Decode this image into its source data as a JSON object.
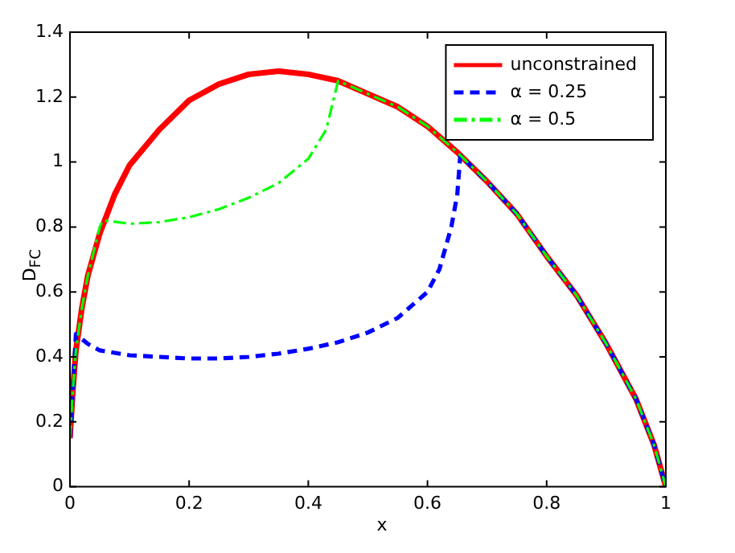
{
  "chart_data": {
    "type": "line",
    "xlabel": "x",
    "ylabel": "D$_{FC}$",
    "xlim": [
      0,
      1
    ],
    "ylim": [
      0,
      1.4
    ],
    "xticks": [
      0,
      0.2,
      0.4,
      0.6,
      0.8,
      1
    ],
    "yticks": [
      0,
      0.2,
      0.4,
      0.6,
      0.8,
      1,
      1.2,
      1.4
    ],
    "grid": false,
    "legend": "top right",
    "marker": "none",
    "series": [
      {
        "name": "unconstrained",
        "color": "#ff0000",
        "line_style": "solid",
        "x": [
          0,
          0.005,
          0.01,
          0.02,
          0.03,
          0.05,
          0.075,
          0.1,
          0.15,
          0.2,
          0.25,
          0.3,
          0.35,
          0.4,
          0.45,
          0.5,
          0.55,
          0.6,
          0.65,
          0.7,
          0.75,
          0.8,
          0.85,
          0.9,
          0.95,
          0.98,
          1
        ],
        "values": [
          0.15,
          0.3,
          0.42,
          0.55,
          0.65,
          0.78,
          0.9,
          0.99,
          1.1,
          1.19,
          1.24,
          1.27,
          1.28,
          1.27,
          1.25,
          1.21,
          1.17,
          1.11,
          1.03,
          0.94,
          0.84,
          0.71,
          0.59,
          0.44,
          0.27,
          0.13,
          0
        ]
      },
      {
        "name": "α = 0.25",
        "color": "#0000ff",
        "line_style": "dashed",
        "x": [
          0,
          0.005,
          0.01,
          0.03,
          0.05,
          0.1,
          0.2,
          0.25,
          0.3,
          0.35,
          0.4,
          0.45,
          0.5,
          0.55,
          0.6,
          0.62,
          0.64,
          0.65,
          0.655,
          0.7,
          0.75,
          0.8,
          0.85,
          0.9,
          0.95,
          0.98,
          1
        ],
        "values": [
          0.15,
          0.3,
          0.47,
          0.44,
          0.42,
          0.405,
          0.395,
          0.395,
          0.4,
          0.41,
          0.425,
          0.445,
          0.475,
          0.52,
          0.6,
          0.67,
          0.8,
          0.9,
          1.02,
          0.94,
          0.84,
          0.71,
          0.59,
          0.44,
          0.27,
          0.13,
          0
        ]
      },
      {
        "name": "α = 0.5",
        "color": "#00ff00",
        "line_style": "dashdot",
        "x": [
          0,
          0.005,
          0.01,
          0.02,
          0.03,
          0.05,
          0.055,
          0.08,
          0.1,
          0.15,
          0.2,
          0.25,
          0.3,
          0.35,
          0.4,
          0.43,
          0.45,
          0.5,
          0.55,
          0.6,
          0.65,
          0.7,
          0.75,
          0.8,
          0.85,
          0.9,
          0.95,
          0.98,
          1
        ],
        "values": [
          0.15,
          0.3,
          0.42,
          0.55,
          0.65,
          0.8,
          0.82,
          0.815,
          0.81,
          0.815,
          0.83,
          0.855,
          0.89,
          0.935,
          1.01,
          1.1,
          1.25,
          1.21,
          1.17,
          1.11,
          1.03,
          0.94,
          0.84,
          0.71,
          0.59,
          0.44,
          0.27,
          0.13,
          0
        ]
      }
    ]
  }
}
